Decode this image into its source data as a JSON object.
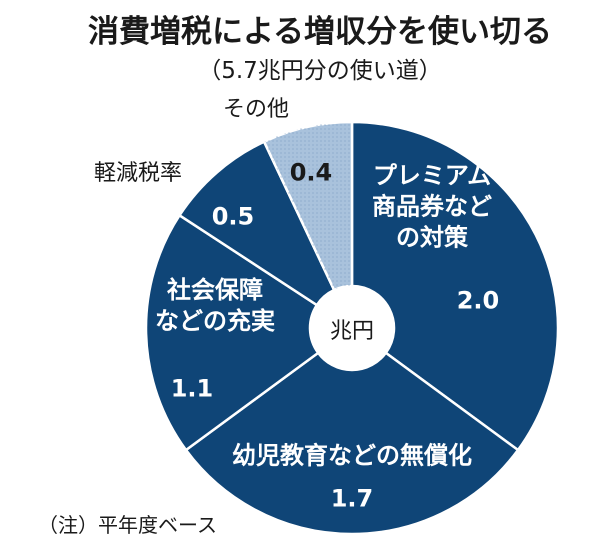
{
  "chart_data": {
    "type": "pie",
    "title": "消費増税による増収分を使い切る",
    "subtitle": "（5.7兆円分の使い道）",
    "center_label": "兆円",
    "total": 5.7,
    "slices": [
      {
        "label_lines": [
          "プレミアム",
          "商品券など",
          "の対策"
        ],
        "value": 2.0,
        "value_label": "2.0",
        "color": "#0f4577"
      },
      {
        "label_lines": [
          "幼児教育などの無償化"
        ],
        "value": 1.7,
        "value_label": "1.7",
        "color": "#0f4577"
      },
      {
        "label_lines": [
          "社会保障",
          "などの充実"
        ],
        "value": 1.1,
        "value_label": "1.1",
        "color": "#0f4577"
      },
      {
        "label_lines": [
          "軽減税率"
        ],
        "value": 0.5,
        "value_label": "0.5",
        "color": "#0f4577"
      },
      {
        "label_lines": [
          "その他"
        ],
        "value": 0.4,
        "value_label": "0.4",
        "color": "#a9c2dc"
      }
    ],
    "note": "（注）平年度ベース"
  }
}
